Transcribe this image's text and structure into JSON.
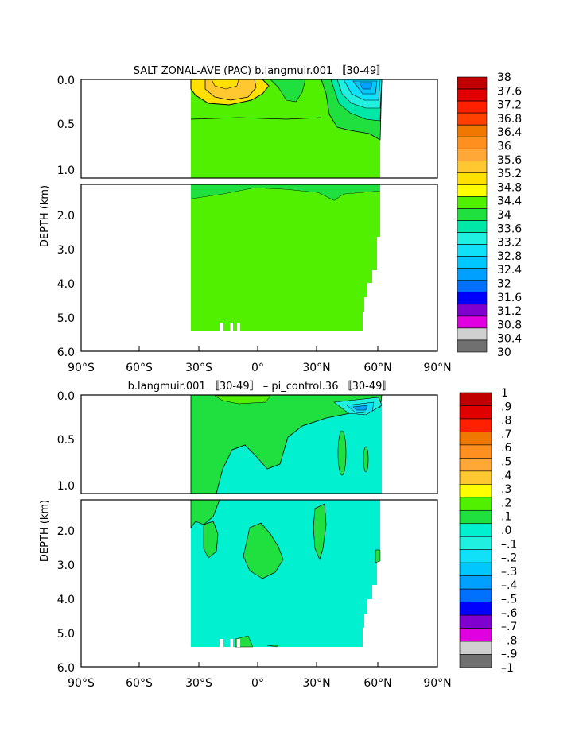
{
  "chart_data": [
    {
      "type": "heatmap",
      "title": "SALT ZONAL-AVE (PAC) b.langmuir.001 〚30-49〛",
      "ylabel": "DEPTH (km)",
      "x_ticks": [
        "90°S",
        "60°S",
        "30°S",
        "0°",
        "30°N",
        "60°N",
        "90°N"
      ],
      "y_ticks_upper": [
        "0.0",
        "0.5",
        "1.0"
      ],
      "y_ticks_lower": [
        "2.0",
        "3.0",
        "4.0",
        "5.0",
        "6.0"
      ],
      "x_range": [
        -90,
        90
      ],
      "upper_depth_range_km": [
        0,
        1.1
      ],
      "lower_depth_range_km": [
        1.1,
        6
      ],
      "data_lat_range": [
        -34,
        62
      ],
      "max_depth_km": 5.4,
      "colorbar_levels": [
        "38",
        "37.6",
        "37.2",
        "36.8",
        "36.4",
        "36",
        "35.6",
        "35.2",
        "34.8",
        "34.4",
        "34",
        "33.6",
        "33.2",
        "32.8",
        "32.4",
        "32",
        "31.6",
        "31.2",
        "30.8",
        "30.4",
        "30"
      ],
      "dominant_value": "34.4-34.8 (deep ocean)",
      "features": [
        {
          "region": "subtropical south surface",
          "lat": -20,
          "depth_km": 0.05,
          "value_range": "34.8-35.6"
        },
        {
          "region": "equatorial surface",
          "lat": 5,
          "depth_km": 0.05,
          "value_range": "34.4-34.8"
        },
        {
          "region": "subpolar north surface",
          "lat": 50,
          "depth_km": 0.1,
          "value_range": "32.0-33.6"
        }
      ]
    },
    {
      "type": "heatmap",
      "title": "b.langmuir.001 〚30-49〛 – pi_control.36 〚30-49〛",
      "ylabel": "DEPTH (km)",
      "x_ticks": [
        "90°S",
        "60°S",
        "30°S",
        "0°",
        "30°N",
        "60°N",
        "90°N"
      ],
      "y_ticks_upper": [
        "0.0",
        "0.5",
        "1.0"
      ],
      "y_ticks_lower": [
        "2.0",
        "3.0",
        "4.0",
        "5.0",
        "6.0"
      ],
      "x_range": [
        -90,
        90
      ],
      "colorbar_levels": [
        "1",
        ".9",
        ".8",
        ".7",
        ".6",
        ".5",
        ".4",
        ".3",
        ".2",
        ".1",
        ".0",
        "–.1",
        "–.2",
        "–.3",
        "–.4",
        "–.5",
        "–.6",
        "–.7",
        "–.8",
        "–.9",
        "–1"
      ],
      "dominant_value": "-0.1 to 0.0",
      "features": [
        {
          "region": "upper ocean south/equator",
          "value_range": "0.0-0.1"
        },
        {
          "region": "subpolar north surface",
          "lat": 48,
          "depth_km": 0.05,
          "value_range": "-0.4 to -0.1"
        },
        {
          "region": "deep patches near equator",
          "lat": 0,
          "depth_km": 2.5,
          "value_range": "0.0-0.1"
        }
      ]
    }
  ],
  "colors": {
    "salt_scale": [
      "#c00000",
      "#e00000",
      "#ff2000",
      "#ff4000",
      "#f07800",
      "#ff9020",
      "#ffa838",
      "#ffc830",
      "#ffe000",
      "#ffff00",
      "#50f000",
      "#20e040",
      "#00e8a8",
      "#20f0e0",
      "#10e0f8",
      "#00c8ff",
      "#00a0ff",
      "#0070ff",
      "#0000ff",
      "#8000d0",
      "#e000e0",
      "#d0d0d0",
      "#707070"
    ],
    "anomaly_scale": [
      "#c00000",
      "#e00000",
      "#ff2000",
      "#f07800",
      "#ff9020",
      "#ffa838",
      "#ffc830",
      "#ffff00",
      "#50f000",
      "#20e040",
      "#00f0d0",
      "#20f0e0",
      "#10e0f8",
      "#00c8ff",
      "#00a0ff",
      "#0070ff",
      "#0000ff",
      "#8000d0",
      "#e000e0",
      "#d0d0d0",
      "#707070"
    ]
  }
}
